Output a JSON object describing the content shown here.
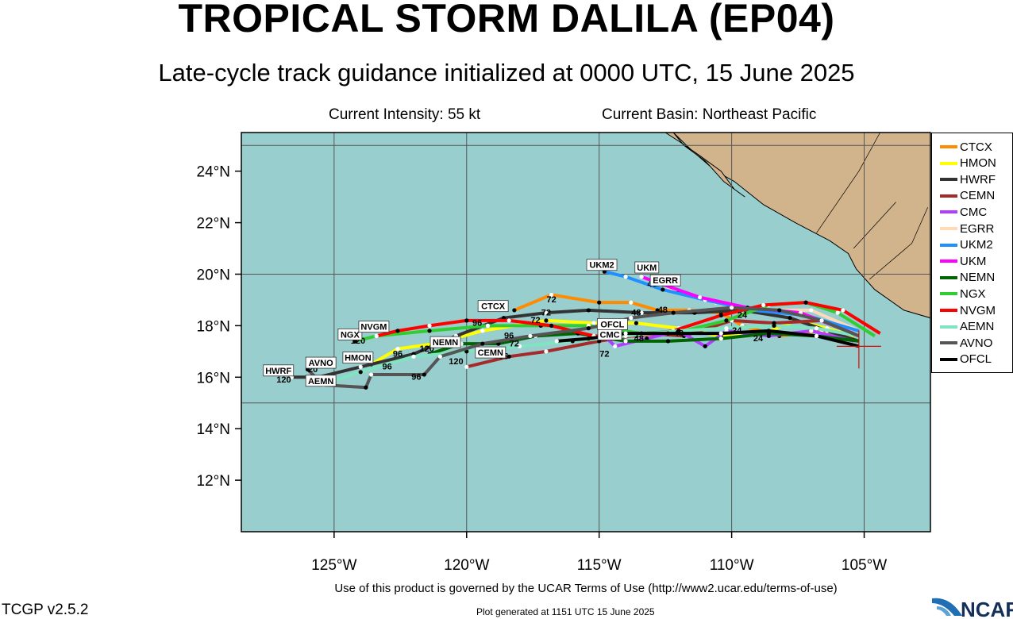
{
  "header": {
    "title": "TROPICAL STORM DALILA (EP04)",
    "subtitle": "Late-cycle track guidance initialized at 0000 UTC, 15 June 2025",
    "intensity": "Current Intensity: 55 kt",
    "basin": "Current Basin: Northeast Pacific"
  },
  "footer": {
    "terms": "Use of this product is governed by the UCAR Terms of Use (http://www2.ucar.edu/terms-of-use)",
    "version": "TCGP v2.5.2",
    "generated": "Plot generated at 1151 UTC   15 June 2025",
    "logo_text": "NCAR"
  },
  "colors": {
    "ocean": "#99cece",
    "land": "#d2b48c",
    "grid": "#555555"
  },
  "map": {
    "lon_range": [
      -128.5,
      -102.5
    ],
    "lat_range": [
      10,
      25.5
    ],
    "lat_ticks": [
      "12°N",
      "14°N",
      "16°N",
      "18°N",
      "20°N",
      "22°N",
      "24°N"
    ],
    "lon_ticks": [
      "125°W",
      "120°W",
      "115°W",
      "110°W",
      "105°W"
    ],
    "current_position": [
      -105.2,
      17.2
    ]
  },
  "legend": [
    {
      "name": "CTCX",
      "color": "#ff8c00"
    },
    {
      "name": "HMON",
      "color": "#ffff00"
    },
    {
      "name": "HWRF",
      "color": "#333333"
    },
    {
      "name": "CEMN",
      "color": "#a52a2a"
    },
    {
      "name": "CMC",
      "color": "#b23cff"
    },
    {
      "name": "EGRR",
      "color": "#ffdab9"
    },
    {
      "name": "UKM2",
      "color": "#1e90ff"
    },
    {
      "name": "UKM",
      "color": "#ff00ff"
    },
    {
      "name": "NEMN",
      "color": "#006400"
    },
    {
      "name": "NGX",
      "color": "#32cd32"
    },
    {
      "name": "NVGM",
      "color": "#ff0000"
    },
    {
      "name": "AEMN",
      "color": "#7fe5c0"
    },
    {
      "name": "AVNO",
      "color": "#555555"
    },
    {
      "name": "OFCL",
      "color": "#000000"
    }
  ],
  "tracks": [
    {
      "name": "CTCX",
      "color": "#ff8c00",
      "pts": [
        [
          -105.4,
          17.5
        ],
        [
          -106.6,
          17.8
        ],
        [
          -108.2,
          17.6
        ],
        [
          -109.6,
          18.0
        ],
        [
          -110.4,
          18.5
        ],
        [
          -111.6,
          18.6
        ],
        [
          -112.8,
          18.6
        ],
        [
          -113.8,
          18.9
        ],
        [
          -115.0,
          18.9
        ],
        [
          -116.8,
          19.2
        ],
        [
          -118.2,
          18.6
        ]
      ],
      "tag": "CTCX",
      "tag_pt": [
        -119.0,
        18.7
      ]
    },
    {
      "name": "HMON",
      "color": "#ffff00",
      "pts": [
        [
          -105.4,
          17.6
        ],
        [
          -106.4,
          17.9
        ],
        [
          -107.6,
          18.2
        ],
        [
          -108.8,
          17.7
        ],
        [
          -110.4,
          17.6
        ],
        [
          -112.0,
          17.9
        ],
        [
          -113.6,
          18.1
        ],
        [
          -115.2,
          18.1
        ],
        [
          -117.0,
          18.2
        ],
        [
          -119.4,
          17.8
        ],
        [
          -121.2,
          17.3
        ],
        [
          -122.6,
          17.1
        ],
        [
          -123.6,
          16.5
        ]
      ],
      "tag": "HMON",
      "tag_pt": [
        -124.1,
        16.7
      ]
    },
    {
      "name": "HWRF",
      "color": "#333333",
      "pts": [
        [
          -105.2,
          17.4
        ],
        [
          -106.4,
          17.8
        ],
        [
          -107.8,
          18.3
        ],
        [
          -109.6,
          18.6
        ],
        [
          -111.4,
          18.5
        ],
        [
          -113.4,
          18.5
        ],
        [
          -115.4,
          18.6
        ],
        [
          -117.0,
          18.5
        ],
        [
          -118.6,
          18.3
        ],
        [
          -120.4,
          17.6
        ],
        [
          -122.0,
          16.9
        ],
        [
          -124.0,
          16.4
        ],
        [
          -125.6,
          16.0
        ],
        [
          -126.6,
          16.0
        ]
      ],
      "tag": "HWRF",
      "tag_pt": [
        -127.1,
        16.2
      ]
    },
    {
      "name": "CEMN",
      "color": "#a52a2a",
      "pts": [
        [
          -105.2,
          17.6
        ],
        [
          -106.6,
          18.2
        ],
        [
          -108.4,
          18.1
        ],
        [
          -110.0,
          18.2
        ],
        [
          -111.8,
          17.6
        ],
        [
          -113.2,
          17.7
        ],
        [
          -115.0,
          17.4
        ],
        [
          -117.0,
          17.0
        ],
        [
          -118.4,
          16.8
        ],
        [
          -120.0,
          16.4
        ]
      ],
      "tag": "CEMN",
      "tag_pt": [
        -119.1,
        16.9
      ]
    },
    {
      "name": "CMC",
      "color": "#b23cff",
      "pts": [
        [
          -105.4,
          17.4
        ],
        [
          -107.0,
          17.8
        ],
        [
          -108.6,
          17.6
        ],
        [
          -110.2,
          17.8
        ],
        [
          -111.0,
          17.2
        ],
        [
          -112.0,
          17.8
        ],
        [
          -113.2,
          17.5
        ],
        [
          -114.4,
          17.2
        ],
        [
          -114.8,
          17.6
        ]
      ],
      "tag": "CMC",
      "tag_pt": [
        -114.6,
        17.6
      ]
    },
    {
      "name": "EGRR",
      "color": "#ffdab9",
      "pts": [
        [
          -105.2,
          17.8
        ],
        [
          -107.0,
          18.6
        ],
        [
          -109.0,
          18.6
        ],
        [
          -110.6,
          18.9
        ],
        [
          -112.0,
          19.3
        ],
        [
          -113.0,
          19.8
        ]
      ],
      "tag": "EGRR",
      "tag_pt": [
        -112.5,
        19.7
      ]
    },
    {
      "name": "UKM2",
      "color": "#1e90ff",
      "pts": [
        [
          -105.2,
          17.8
        ],
        [
          -107.2,
          18.4
        ],
        [
          -109.2,
          18.6
        ],
        [
          -111.0,
          19.0
        ],
        [
          -112.6,
          19.4
        ],
        [
          -114.0,
          19.9
        ],
        [
          -114.8,
          20.1
        ]
      ],
      "tag": "UKM2",
      "tag_pt": [
        -114.9,
        20.3
      ]
    },
    {
      "name": "UKM",
      "color": "#ff00ff",
      "pts": [
        [
          -105.4,
          17.7
        ],
        [
          -107.4,
          18.5
        ],
        [
          -109.4,
          18.7
        ],
        [
          -111.2,
          19.1
        ],
        [
          -112.6,
          19.6
        ],
        [
          -113.4,
          19.9
        ]
      ],
      "tag": "UKM",
      "tag_pt": [
        -113.2,
        20.2
      ]
    },
    {
      "name": "NEMN",
      "color": "#006400",
      "pts": [
        [
          -105.2,
          17.4
        ],
        [
          -106.8,
          17.6
        ],
        [
          -108.6,
          17.7
        ],
        [
          -110.4,
          17.5
        ],
        [
          -112.4,
          17.4
        ],
        [
          -114.0,
          17.4
        ],
        [
          -115.8,
          17.7
        ],
        [
          -117.4,
          17.6
        ],
        [
          -118.8,
          17.3
        ],
        [
          -120.2,
          17.3
        ],
        [
          -121.4,
          16.9
        ]
      ],
      "tag": "NEMN",
      "tag_pt": [
        -120.8,
        17.3
      ]
    },
    {
      "name": "NGX",
      "color": "#32cd32",
      "pts": [
        [
          -104.6,
          17.6
        ],
        [
          -106.0,
          18.5
        ],
        [
          -107.2,
          18.9
        ],
        [
          -108.6,
          18.8
        ],
        [
          -110.2,
          18.2
        ],
        [
          -111.8,
          17.8
        ],
        [
          -113.4,
          17.7
        ],
        [
          -115.4,
          18.0
        ],
        [
          -117.2,
          18.0
        ],
        [
          -119.2,
          18.0
        ],
        [
          -121.4,
          17.8
        ],
        [
          -123.4,
          17.6
        ],
        [
          -124.2,
          17.4
        ]
      ],
      "tag": "NGX",
      "tag_pt": [
        -124.4,
        17.6
      ]
    },
    {
      "name": "NVGM",
      "color": "#ff0000",
      "pts": [
        [
          -104.4,
          17.7
        ],
        [
          -105.8,
          18.6
        ],
        [
          -107.2,
          18.9
        ],
        [
          -108.8,
          18.8
        ],
        [
          -110.4,
          18.4
        ],
        [
          -112.2,
          17.8
        ],
        [
          -113.6,
          17.6
        ],
        [
          -115.2,
          17.6
        ],
        [
          -116.8,
          18.0
        ],
        [
          -118.4,
          18.2
        ],
        [
          -120.0,
          18.2
        ],
        [
          -121.4,
          18.0
        ],
        [
          -122.6,
          17.8
        ],
        [
          -123.4,
          17.6
        ]
      ],
      "tag": "NVGM",
      "tag_pt": [
        -123.5,
        17.9
      ]
    },
    {
      "name": "AEMN",
      "color": "#7fe5c0",
      "pts": [
        [
          -105.2,
          17.6
        ],
        [
          -106.8,
          17.9
        ],
        [
          -108.4,
          18.0
        ],
        [
          -110.2,
          17.9
        ],
        [
          -112.0,
          17.8
        ],
        [
          -114.0,
          17.6
        ],
        [
          -116.0,
          17.4
        ],
        [
          -118.0,
          17.2
        ],
        [
          -120.0,
          17.0
        ],
        [
          -122.0,
          16.8
        ],
        [
          -124.0,
          16.2
        ],
        [
          -125.2,
          15.8
        ]
      ],
      "tag": "AEMN",
      "tag_pt": [
        -125.5,
        15.8
      ]
    },
    {
      "name": "AVNO",
      "color": "#555555",
      "pts": [
        [
          -105.2,
          17.6
        ],
        [
          -106.6,
          18.2
        ],
        [
          -108.2,
          18.6
        ],
        [
          -110.0,
          18.7
        ],
        [
          -112.2,
          18.5
        ],
        [
          -113.8,
          18.3
        ],
        [
          -115.4,
          17.9
        ],
        [
          -117.6,
          17.6
        ],
        [
          -119.4,
          17.3
        ],
        [
          -121.0,
          16.8
        ],
        [
          -121.6,
          16.1
        ],
        [
          -123.6,
          16.1
        ],
        [
          -123.8,
          15.6
        ],
        [
          -125.4,
          15.7
        ],
        [
          -126.0,
          16.3
        ]
      ],
      "tag": "AVNO",
      "tag_pt": [
        -125.5,
        16.5
      ]
    },
    {
      "name": "OFCL",
      "color": "#000000",
      "pts": [
        [
          -105.2,
          17.2
        ],
        [
          -106.8,
          17.6
        ],
        [
          -108.6,
          17.8
        ],
        [
          -110.4,
          17.7
        ],
        [
          -112.4,
          17.7
        ],
        [
          -114.0,
          17.7
        ],
        [
          -115.4,
          17.5
        ],
        [
          -116.6,
          17.4
        ]
      ],
      "tag": "OFCL",
      "tag_pt": [
        -114.5,
        18.0
      ]
    }
  ],
  "hour_labels": [
    {
      "text": "24",
      "pt": [
        -109.6,
        18.3
      ]
    },
    {
      "text": "24",
      "pt": [
        -109.8,
        17.7
      ]
    },
    {
      "text": "24",
      "pt": [
        -109.0,
        17.4
      ]
    },
    {
      "text": "48",
      "pt": [
        -113.6,
        18.4
      ]
    },
    {
      "text": "48",
      "pt": [
        -112.6,
        18.5
      ]
    },
    {
      "text": "48",
      "pt": [
        -112.0,
        17.6
      ]
    },
    {
      "text": "48",
      "pt": [
        -113.5,
        17.4
      ]
    },
    {
      "text": "48",
      "pt": [
        -113.0,
        19.5
      ]
    },
    {
      "text": "72",
      "pt": [
        -116.8,
        18.9
      ]
    },
    {
      "text": "72",
      "pt": [
        -117.0,
        18.4
      ]
    },
    {
      "text": "72",
      "pt": [
        -117.4,
        18.1
      ]
    },
    {
      "text": "72",
      "pt": [
        -118.2,
        17.2
      ]
    },
    {
      "text": "72",
      "pt": [
        -114.8,
        16.8
      ]
    },
    {
      "text": "96",
      "pt": [
        -118.4,
        17.5
      ]
    },
    {
      "text": "96",
      "pt": [
        -119.6,
        18.0
      ]
    },
    {
      "text": "96",
      "pt": [
        -122.6,
        16.8
      ]
    },
    {
      "text": "96",
      "pt": [
        -123.0,
        16.3
      ]
    },
    {
      "text": "96",
      "pt": [
        -121.9,
        15.9
      ]
    },
    {
      "text": "96",
      "pt": [
        -118.6,
        16.7
      ]
    },
    {
      "text": "120",
      "pt": [
        -124.1,
        17.3
      ]
    },
    {
      "text": "120",
      "pt": [
        -120.4,
        16.5
      ]
    },
    {
      "text": "120",
      "pt": [
        -121.5,
        17.0
      ]
    },
    {
      "text": "120",
      "pt": [
        -126.9,
        15.8
      ]
    },
    {
      "text": "20",
      "pt": [
        -125.8,
        16.2
      ]
    }
  ]
}
